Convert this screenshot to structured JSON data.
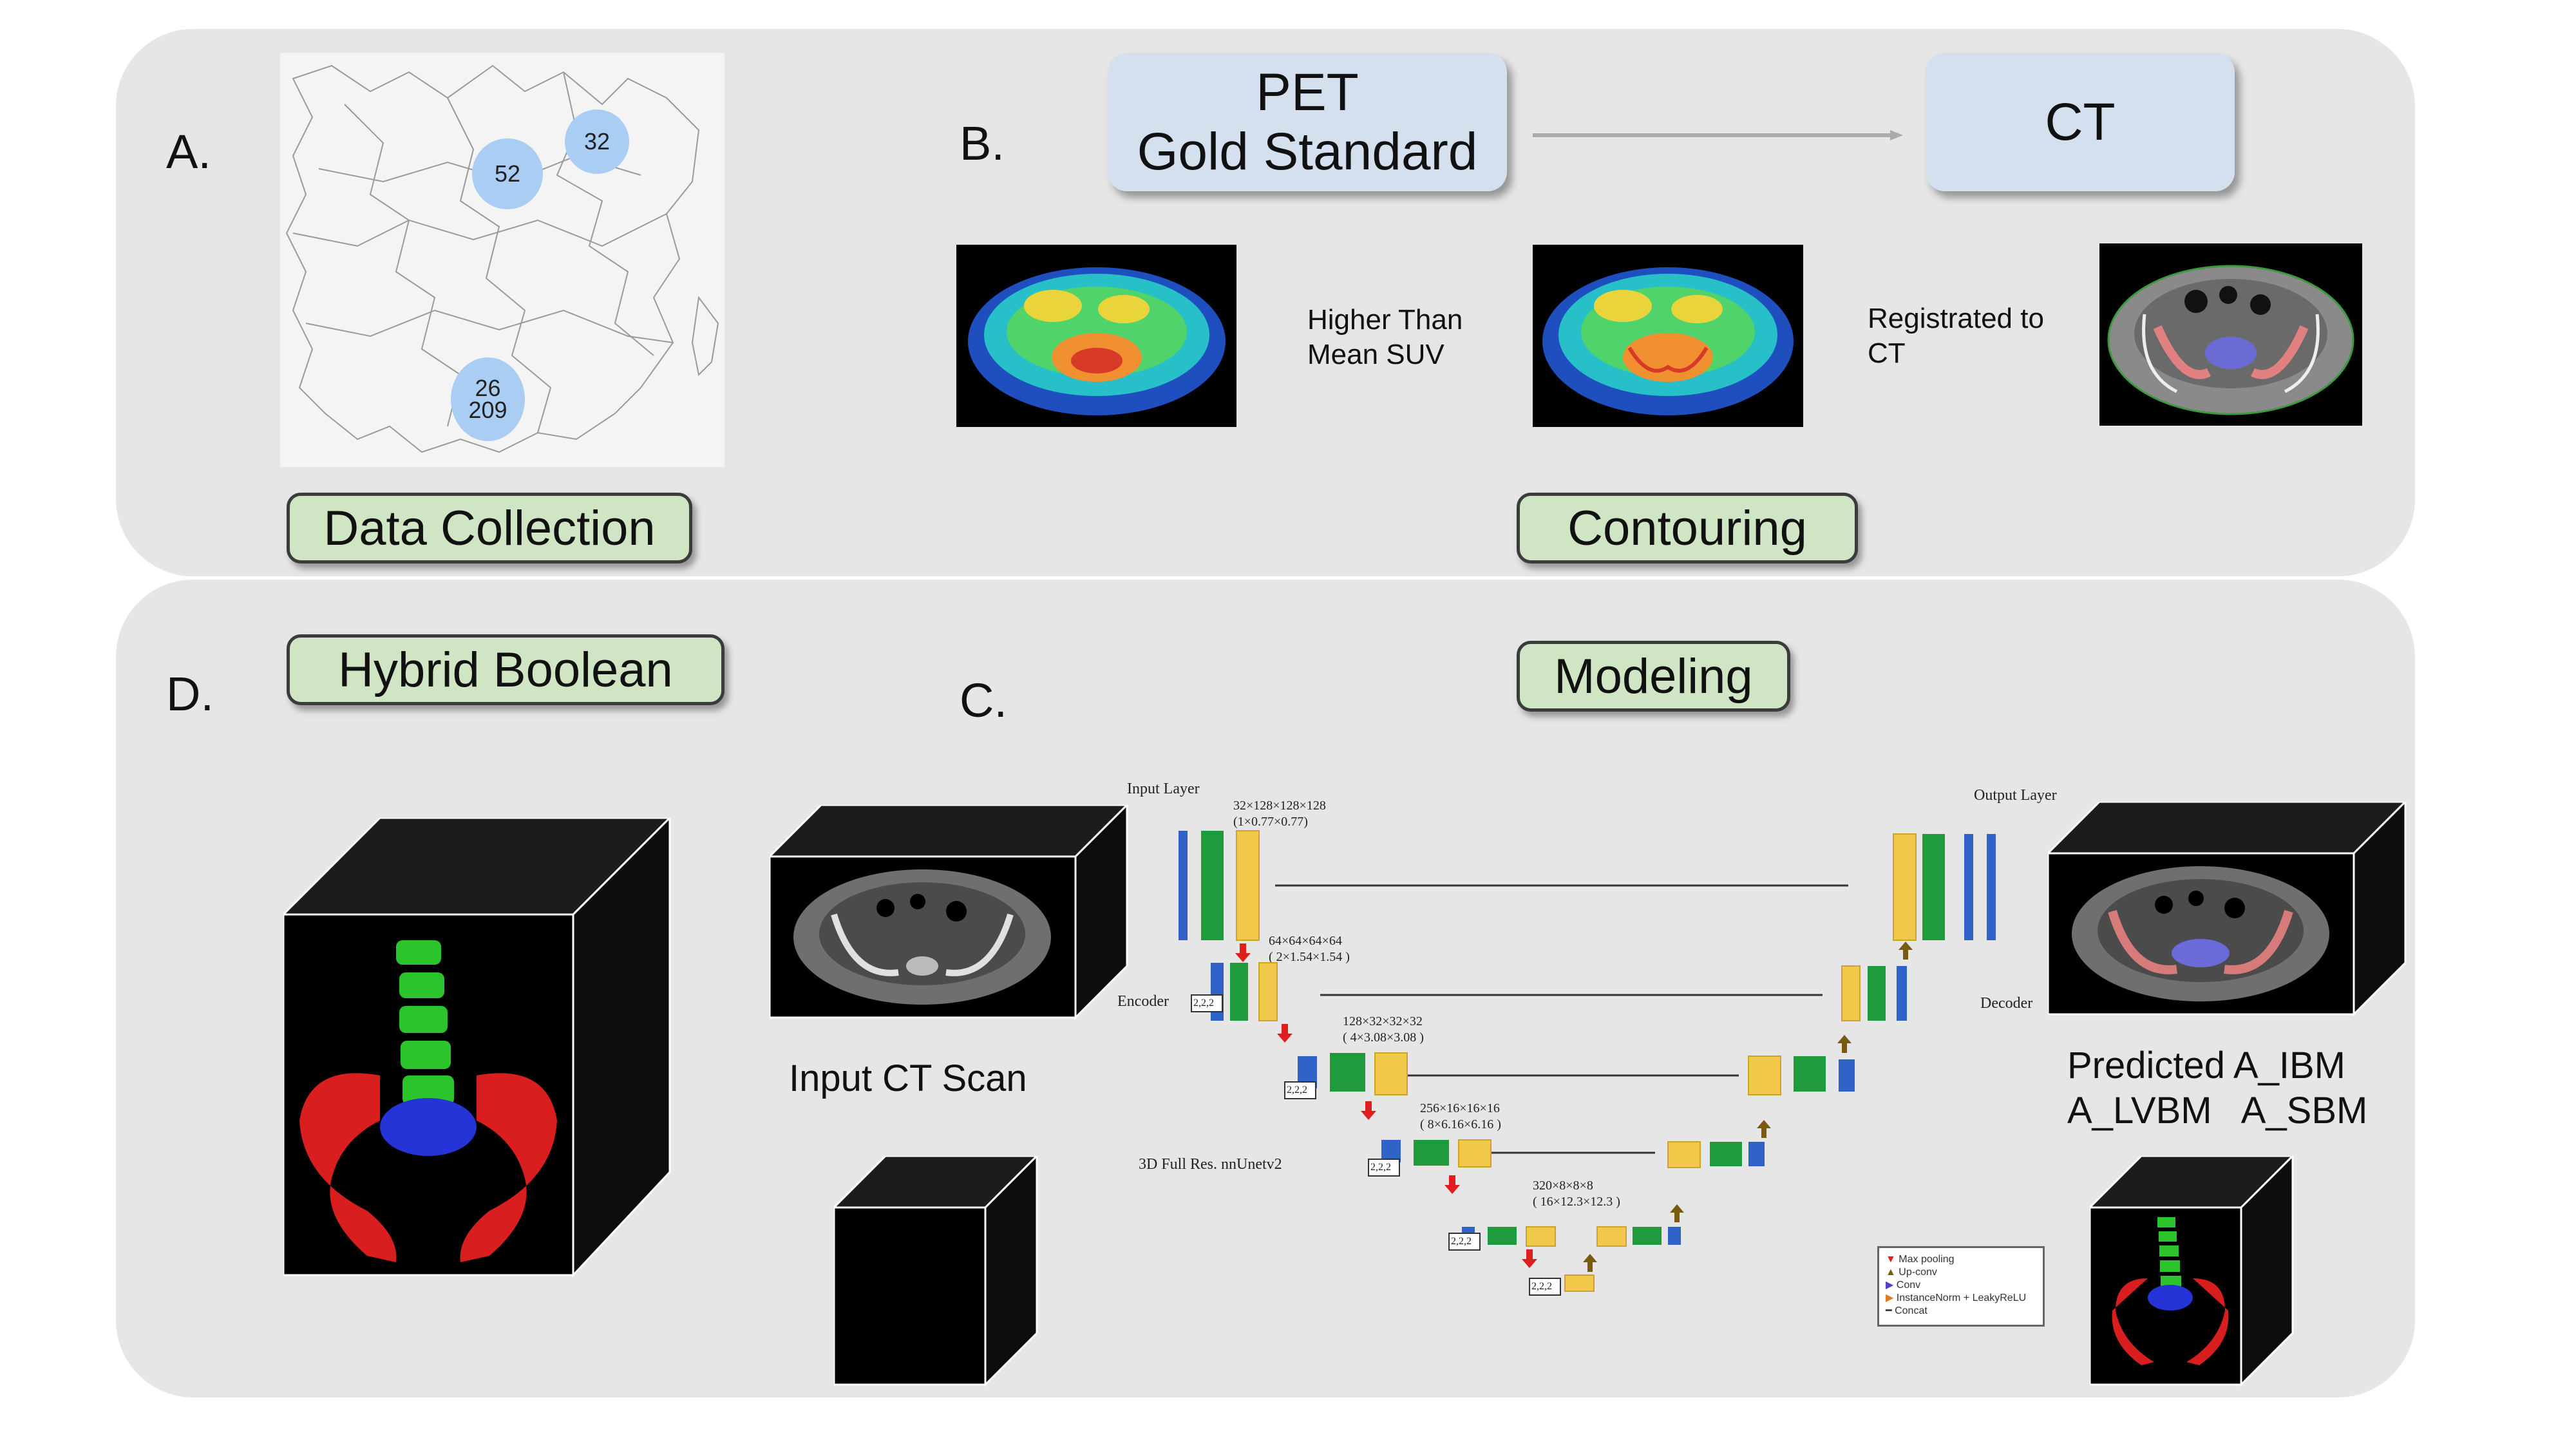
{
  "panels": {
    "a_letter": "A.",
    "b_letter": "B.",
    "c_letter": "C.",
    "d_letter": "D."
  },
  "data_collection": {
    "label": "Data Collection",
    "bubbles": [
      "32",
      "52",
      "26",
      "209"
    ]
  },
  "contouring": {
    "label": "Contouring",
    "pet_box": "PET\nGold Standard",
    "ct_box": "CT",
    "higher_line1": "Higher Than",
    "higher_line2": "Mean SUV",
    "reg_line1": "Registrated to",
    "reg_line2": "CT"
  },
  "hybrid": {
    "label": "Hybrid Boolean"
  },
  "modeling": {
    "label": "Modeling",
    "input_caption": "Input CT Scan",
    "predicted_line1": "Predicted A_IBM",
    "predicted_line2": "A_LVBM   A_SBM",
    "input_layer": "Input Layer",
    "output_layer": "Output Layer",
    "encoder": "Encoder",
    "decoder": "Decoder",
    "net_name": "3D Full Res. nnUnetv2",
    "dims": [
      {
        "size": "32×128×128×128",
        "spacing": "(1×0.77×0.77)"
      },
      {
        "size": "64×64×64×64",
        "spacing": "( 2×1.54×1.54 )"
      },
      {
        "size": "128×32×32×32",
        "spacing": "( 4×3.08×3.08 )"
      },
      {
        "size": "256×16×16×16",
        "spacing": "( 8×6.16×6.16 )"
      },
      {
        "size": "320×8×8×8",
        "spacing": "( 16×12.3×12.3 )"
      }
    ],
    "pool_label": "2,2,2",
    "legend": [
      "Max pooling",
      "Up-conv",
      "Conv",
      "InstanceNorm + LeakyReLU",
      "Concat"
    ]
  }
}
